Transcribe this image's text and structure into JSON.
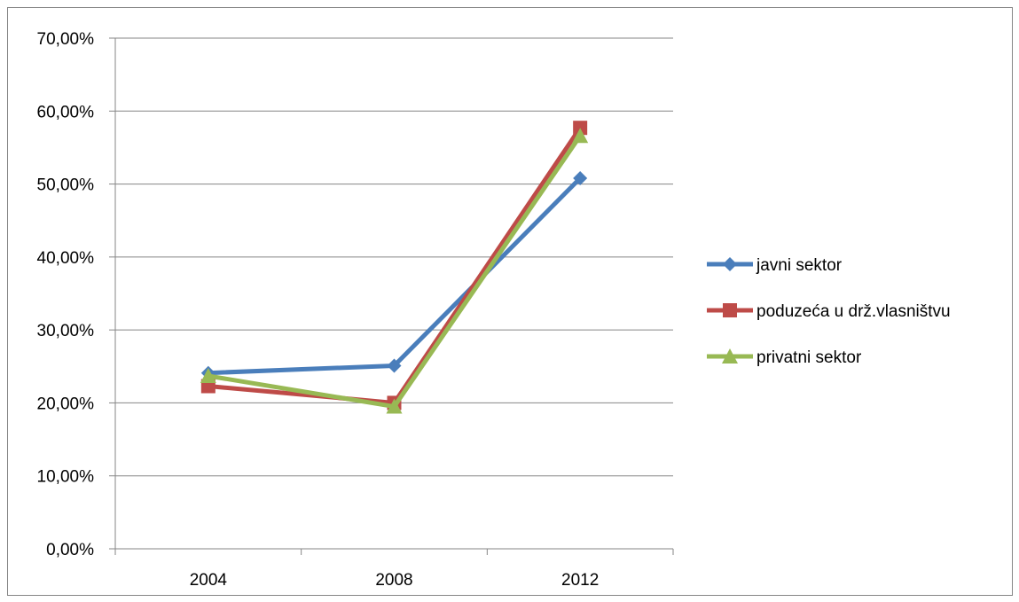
{
  "chart_data": {
    "type": "line",
    "categories": [
      "2004",
      "2008",
      "2012"
    ],
    "series": [
      {
        "name": "javni sektor",
        "values": [
          24.1,
          25.1,
          50.8
        ],
        "color": "#4A7EBB",
        "marker": "diamond"
      },
      {
        "name": "poduzeća u drž.vlasništvu",
        "values": [
          22.3,
          20.0,
          57.7
        ],
        "color": "#BE4B48",
        "marker": "square"
      },
      {
        "name": "privatni sektor",
        "values": [
          23.7,
          19.5,
          56.6
        ],
        "color": "#98B954",
        "marker": "triangle"
      }
    ],
    "ylim": [
      0,
      70
    ],
    "yticks": [
      "0,00%",
      "10,00%",
      "20,00%",
      "30,00%",
      "40,00%",
      "50,00%",
      "60,00%",
      "70,00%"
    ],
    "grid": true,
    "legend_position": "right"
  }
}
